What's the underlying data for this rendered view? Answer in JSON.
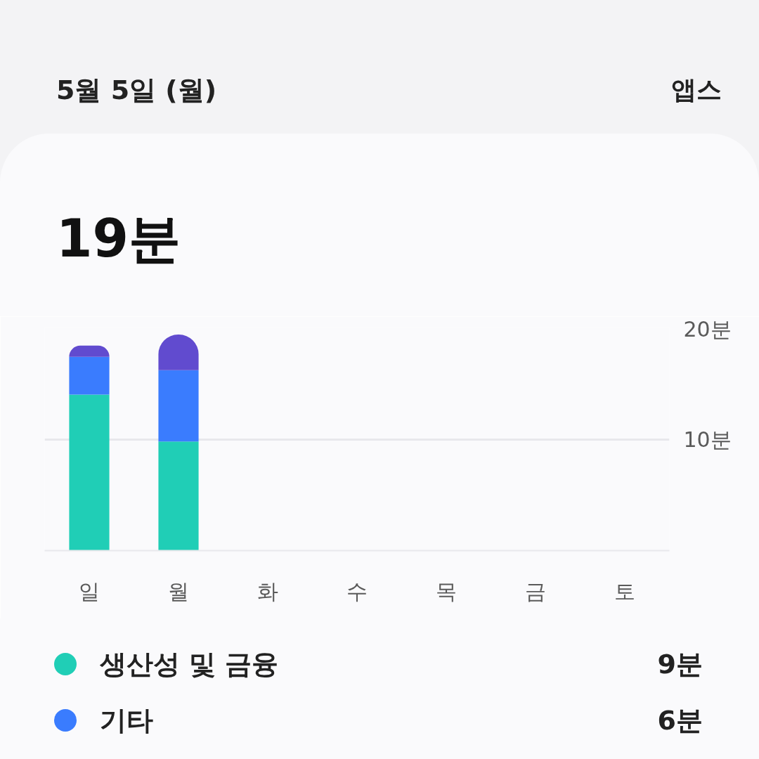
{
  "chart_data": {
    "type": "bar",
    "title": "5월 5일 (월)",
    "subtitle": "19분",
    "annotations": [
      "앱스",
      "9분",
      "6분"
    ],
    "categories": [
      "일",
      "월",
      "화",
      "수",
      "목",
      "금",
      "토"
    ],
    "stacked": true,
    "series": [
      {
        "name": "생산성 및 금융",
        "color": "#20ceb6",
        "values": [
          14,
          9.8,
          null,
          null,
          null,
          null,
          null
        ]
      },
      {
        "name": "기타",
        "color": "#3a7cfe",
        "values": [
          3.4,
          6.4,
          null,
          null,
          null,
          null,
          null
        ]
      },
      {
        "color": "#614bcf",
        "values": [
          1,
          3.2,
          null,
          null,
          null,
          null,
          null
        ]
      }
    ],
    "ylim": [
      0,
      20
    ],
    "yticks": [
      {
        "value": 0,
        "label": null
      },
      {
        "value": 10,
        "label": "10분"
      },
      {
        "value": 20,
        "label": "20분"
      }
    ],
    "grid": "y",
    "legend": "bottom"
  }
}
